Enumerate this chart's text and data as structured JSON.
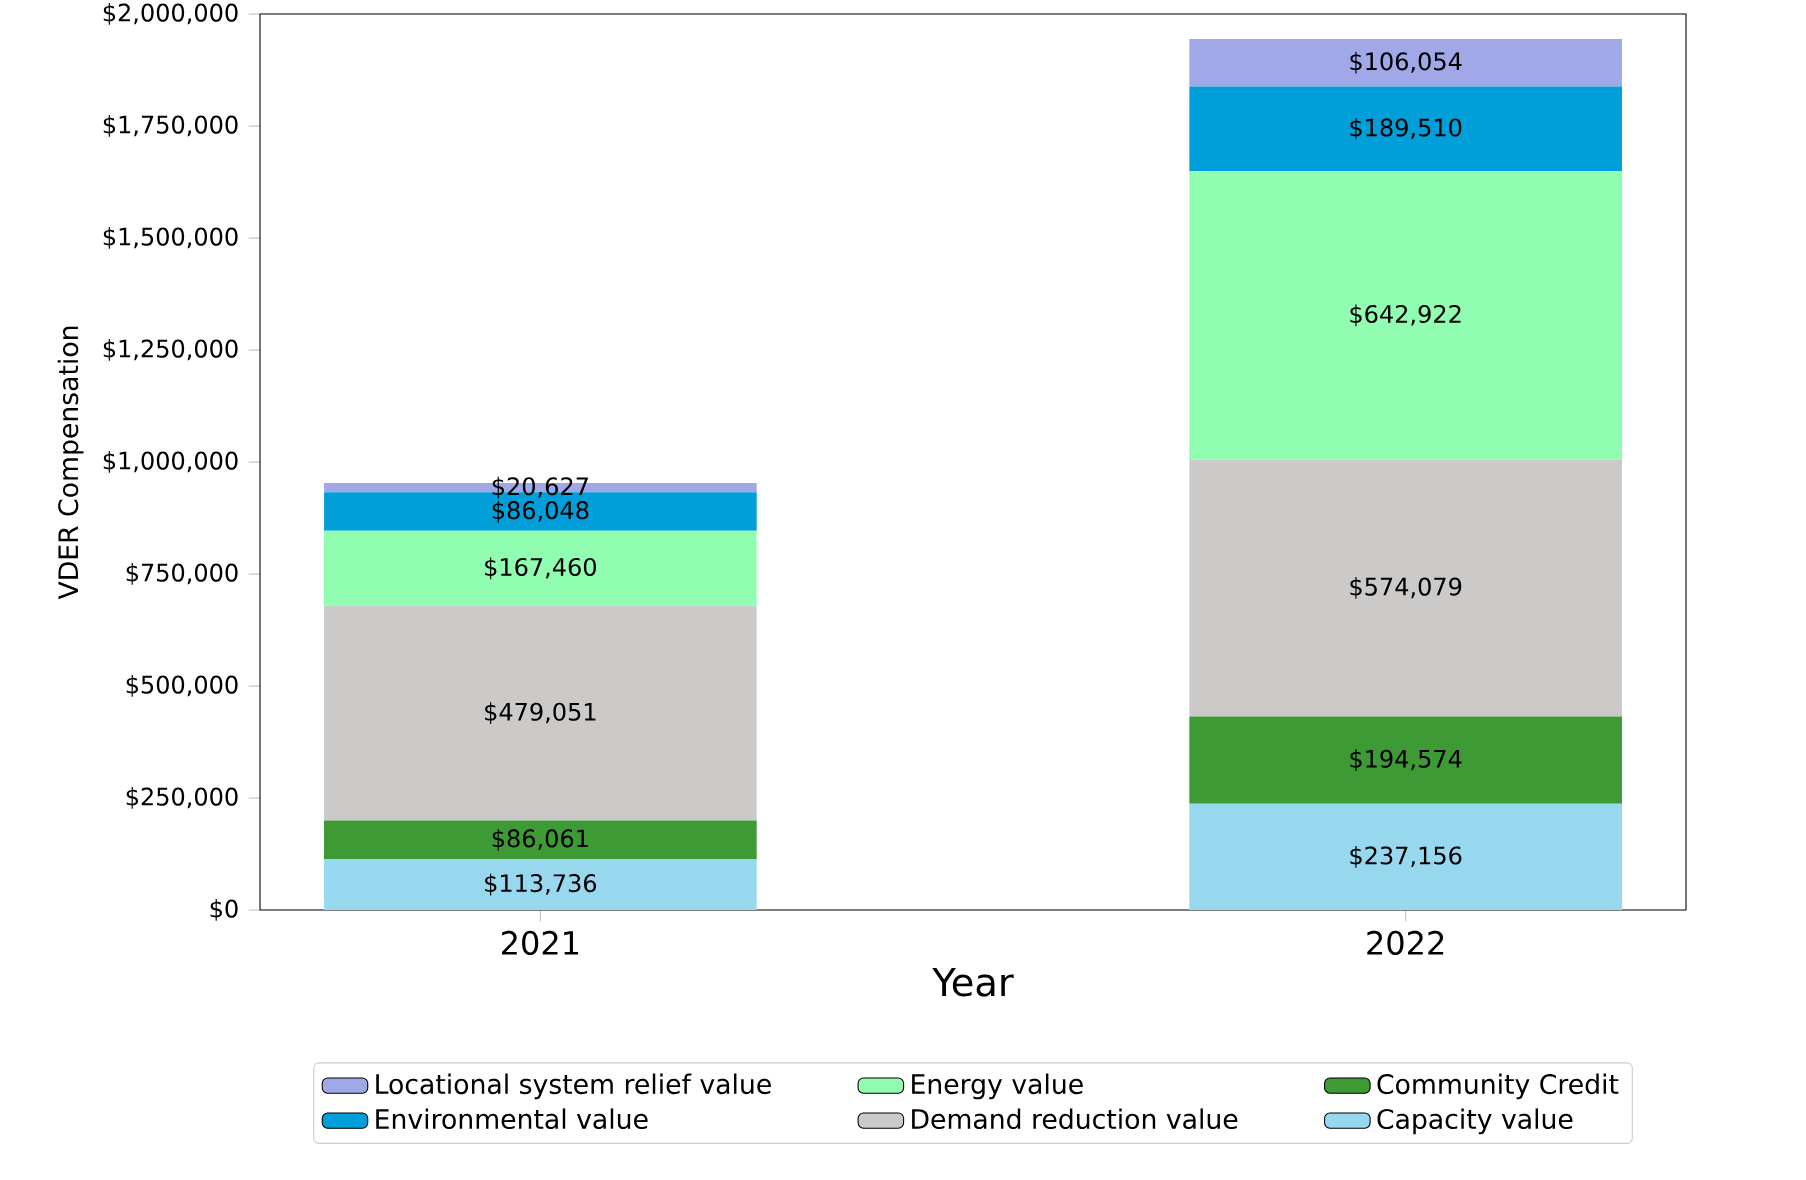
{
  "chart_data": {
    "type": "bar",
    "stacked": true,
    "xlabel": "Year",
    "ylabel": "VDER Compensation",
    "categories": [
      "2021",
      "2022"
    ],
    "ylim": [
      0,
      2000000
    ],
    "yticks": [
      {
        "value": 0,
        "label": "$0"
      },
      {
        "value": 250000,
        "label": "$250,000"
      },
      {
        "value": 500000,
        "label": "$500,000"
      },
      {
        "value": 750000,
        "label": "$750,000"
      },
      {
        "value": 1000000,
        "label": "$1,000,000"
      },
      {
        "value": 1250000,
        "label": "$1,250,000"
      },
      {
        "value": 1500000,
        "label": "$1,500,000"
      },
      {
        "value": 1750000,
        "label": "$1,750,000"
      },
      {
        "value": 2000000,
        "label": "$2,000,000"
      }
    ],
    "legend": "bottom",
    "grid": false,
    "series": [
      {
        "name": "Capacity value",
        "color": "#98d8ef",
        "values": [
          113736,
          237156
        ],
        "value_labels": [
          "$113,736",
          "$237,156"
        ]
      },
      {
        "name": "Community Credit",
        "color": "#3d9a35",
        "values": [
          86061,
          194574
        ],
        "value_labels": [
          "$86,061",
          "$194,574"
        ]
      },
      {
        "name": "Demand reduction value",
        "color": "#cccac8",
        "values": [
          479051,
          574079
        ],
        "value_labels": [
          "$479,051",
          "$574,079"
        ]
      },
      {
        "name": "Energy value",
        "color": "#90fdb0",
        "values": [
          167460,
          642922
        ],
        "value_labels": [
          "$167,460",
          "$642,922"
        ]
      },
      {
        "name": "Environmental value",
        "color": "#009fd9",
        "values": [
          86048,
          189510
        ],
        "value_labels": [
          "$86,048",
          "$189,510"
        ]
      },
      {
        "name": "Locational system relief value",
        "color": "#a0a8e8",
        "values": [
          20627,
          106054
        ],
        "value_labels": [
          "$20,627",
          "$106,054"
        ]
      }
    ]
  }
}
